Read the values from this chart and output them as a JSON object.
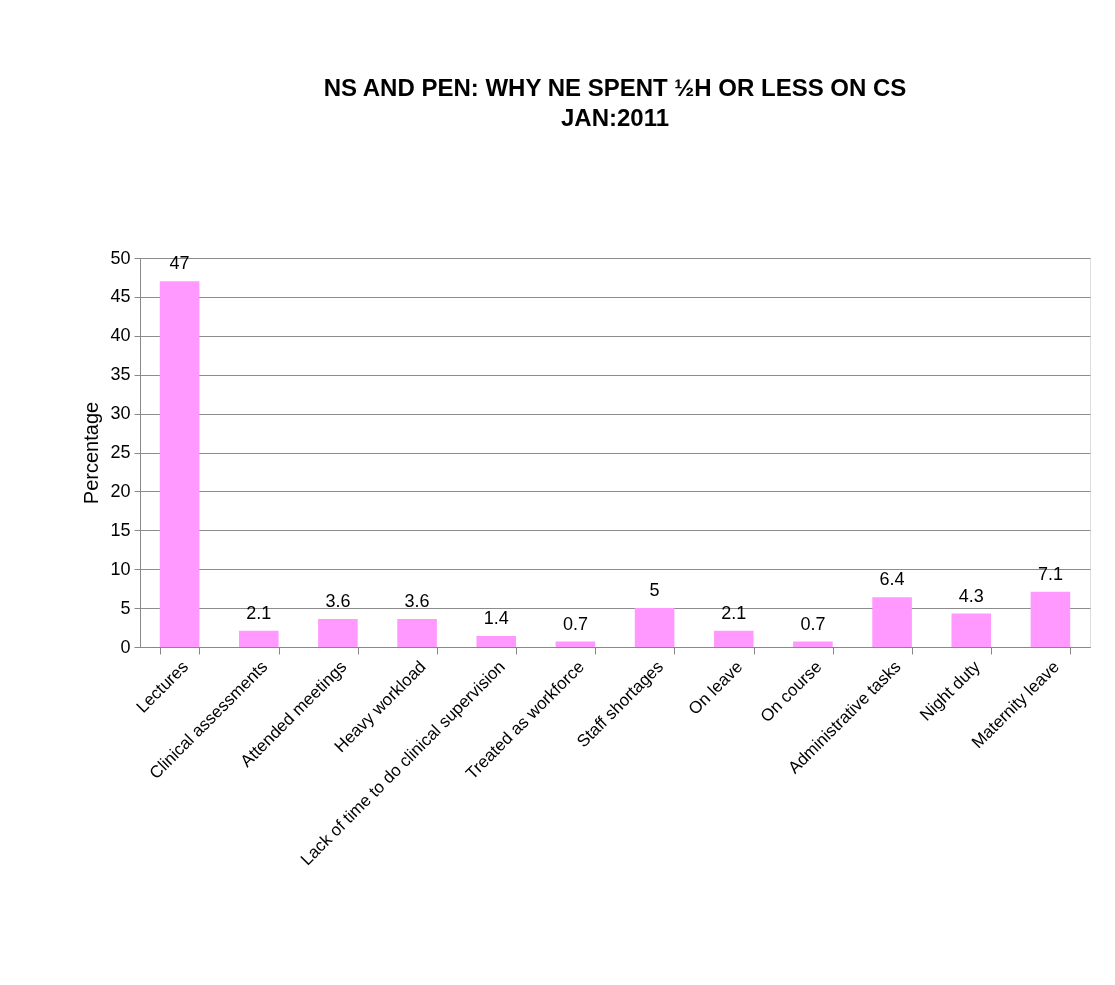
{
  "chart_data": {
    "type": "bar",
    "title": "NS AND PEN: WHY NE SPENT ½H OR LESS ON CS\nJAN:2011",
    "ylabel": "Percentage",
    "categories": [
      "Lectures",
      "Clinical assessments",
      "Attended meetings",
      "Heavy workload",
      "Lack of time to do clinical supervision",
      "Treated as workforce",
      "Staff shortages",
      "On leave",
      "On course",
      "Administrative tasks",
      "Night duty",
      "Maternity leave"
    ],
    "values": [
      47,
      2.1,
      3.6,
      3.6,
      1.4,
      0.7,
      5,
      2.1,
      0.7,
      6.4,
      4.3,
      7.1
    ],
    "color": "#ff99ff",
    "ylim": [
      0,
      50
    ],
    "yticks": [
      0,
      5,
      10,
      15,
      20,
      25,
      30,
      35,
      40,
      45,
      50
    ],
    "grid": "y",
    "data_labels": true
  }
}
